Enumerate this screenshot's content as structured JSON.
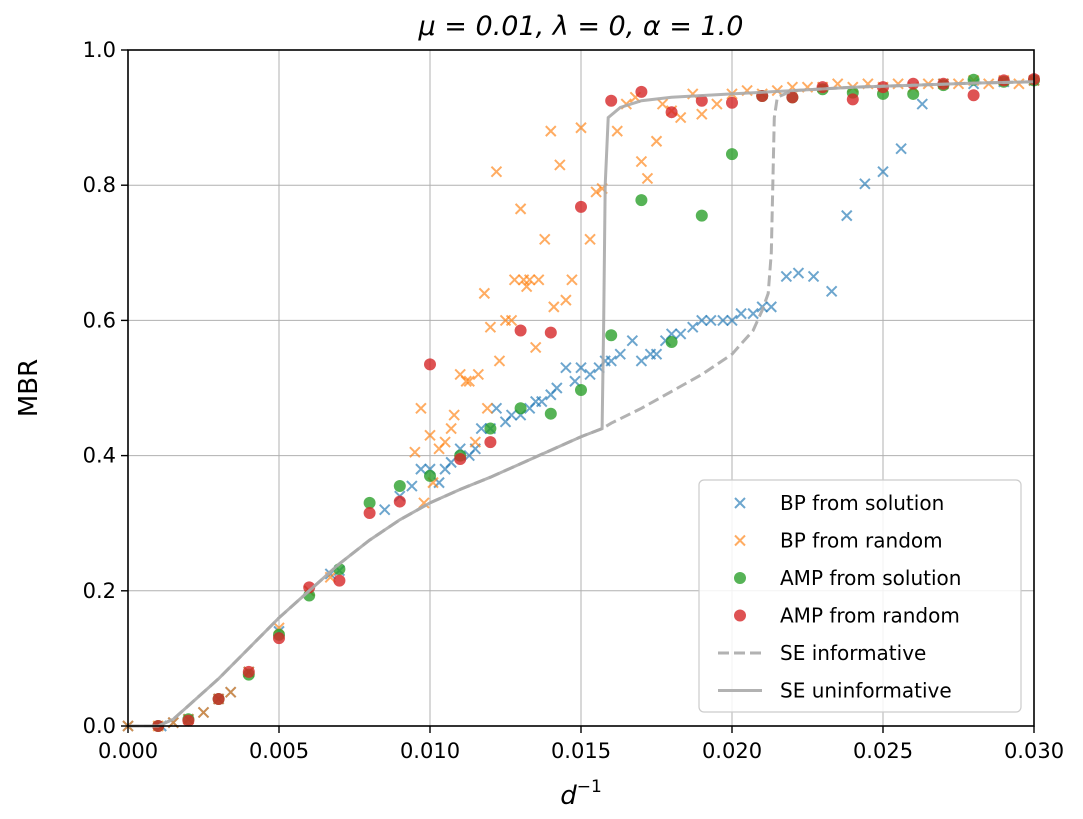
{
  "chart_data": {
    "type": "scatter",
    "title": "μ = 0.01, λ = 0, α = 1.0",
    "xlabel": "d",
    "xlabel_sup": "−1",
    "ylabel": "MBR",
    "xlim": [
      0.0,
      0.03
    ],
    "ylim": [
      0.0,
      1.0
    ],
    "xticks": [
      0.0,
      0.005,
      0.01,
      0.015,
      0.02,
      0.025,
      0.03
    ],
    "xtick_labels": [
      "0.000",
      "0.005",
      "0.010",
      "0.015",
      "0.020",
      "0.025",
      "0.030"
    ],
    "yticks": [
      0.0,
      0.2,
      0.4,
      0.6,
      0.8,
      1.0
    ],
    "ytick_labels": [
      "0.0",
      "0.2",
      "0.4",
      "0.6",
      "0.8",
      "1.0"
    ],
    "grid": true,
    "legend_position": "lower-right",
    "colors": {
      "bp_solution": "#1f77b4",
      "bp_random": "#ff7f0e",
      "amp_solution": "#2ca02c",
      "amp_random": "#d62728",
      "se": "#aaaaaa"
    },
    "series": [
      {
        "name": "BP from solution",
        "marker": "x",
        "color": "#1f77b4",
        "points": [
          [
            0.0,
            0.0
          ],
          [
            0.0011,
            0.0
          ],
          [
            0.0015,
            0.005
          ],
          [
            0.002,
            0.01
          ],
          [
            0.0025,
            0.02
          ],
          [
            0.003,
            0.04
          ],
          [
            0.0034,
            0.05
          ],
          [
            0.004,
            0.08
          ],
          [
            0.005,
            0.14
          ],
          [
            0.006,
            0.2
          ],
          [
            0.0067,
            0.225
          ],
          [
            0.007,
            0.23
          ],
          [
            0.0085,
            0.32
          ],
          [
            0.009,
            0.34
          ],
          [
            0.0094,
            0.355
          ],
          [
            0.0097,
            0.38
          ],
          [
            0.01,
            0.38
          ],
          [
            0.0103,
            0.36
          ],
          [
            0.0105,
            0.38
          ],
          [
            0.0107,
            0.39
          ],
          [
            0.011,
            0.41
          ],
          [
            0.0113,
            0.4
          ],
          [
            0.0115,
            0.41
          ],
          [
            0.0117,
            0.44
          ],
          [
            0.012,
            0.44
          ],
          [
            0.0122,
            0.47
          ],
          [
            0.0125,
            0.45
          ],
          [
            0.0127,
            0.46
          ],
          [
            0.013,
            0.46
          ],
          [
            0.0133,
            0.47
          ],
          [
            0.0135,
            0.48
          ],
          [
            0.0137,
            0.48
          ],
          [
            0.014,
            0.49
          ],
          [
            0.0142,
            0.5
          ],
          [
            0.0145,
            0.53
          ],
          [
            0.0148,
            0.51
          ],
          [
            0.015,
            0.53
          ],
          [
            0.0153,
            0.52
          ],
          [
            0.0156,
            0.53
          ],
          [
            0.0158,
            0.54
          ],
          [
            0.016,
            0.54
          ],
          [
            0.0163,
            0.55
          ],
          [
            0.0167,
            0.57
          ],
          [
            0.017,
            0.54
          ],
          [
            0.0173,
            0.55
          ],
          [
            0.0175,
            0.55
          ],
          [
            0.0178,
            0.57
          ],
          [
            0.018,
            0.58
          ],
          [
            0.0183,
            0.58
          ],
          [
            0.0187,
            0.59
          ],
          [
            0.019,
            0.6
          ],
          [
            0.0193,
            0.6
          ],
          [
            0.0197,
            0.6
          ],
          [
            0.02,
            0.6
          ],
          [
            0.0203,
            0.61
          ],
          [
            0.0207,
            0.61
          ],
          [
            0.021,
            0.62
          ],
          [
            0.0213,
            0.62
          ],
          [
            0.0218,
            0.665
          ],
          [
            0.0222,
            0.67
          ],
          [
            0.0227,
            0.665
          ],
          [
            0.0233,
            0.643
          ],
          [
            0.0238,
            0.755
          ],
          [
            0.0244,
            0.802
          ],
          [
            0.025,
            0.82
          ],
          [
            0.0256,
            0.854
          ],
          [
            0.0263,
            0.92
          ],
          [
            0.027,
            0.95
          ],
          [
            0.028,
            0.95
          ],
          [
            0.029,
            0.953
          ],
          [
            0.03,
            0.955
          ]
        ]
      },
      {
        "name": "BP from random",
        "marker": "x",
        "color": "#ff7f0e",
        "points": [
          [
            0.0,
            0.0
          ],
          [
            0.001,
            0.0
          ],
          [
            0.0015,
            0.005
          ],
          [
            0.002,
            0.01
          ],
          [
            0.0025,
            0.02
          ],
          [
            0.003,
            0.04
          ],
          [
            0.0034,
            0.05
          ],
          [
            0.004,
            0.08
          ],
          [
            0.005,
            0.145
          ],
          [
            0.006,
            0.2
          ],
          [
            0.0067,
            0.22
          ],
          [
            0.0095,
            0.405
          ],
          [
            0.0097,
            0.47
          ],
          [
            0.0098,
            0.33
          ],
          [
            0.01,
            0.43
          ],
          [
            0.0101,
            0.36
          ],
          [
            0.0103,
            0.41
          ],
          [
            0.0105,
            0.42
          ],
          [
            0.0107,
            0.44
          ],
          [
            0.0108,
            0.46
          ],
          [
            0.011,
            0.52
          ],
          [
            0.0112,
            0.51
          ],
          [
            0.0113,
            0.51
          ],
          [
            0.0115,
            0.42
          ],
          [
            0.0116,
            0.52
          ],
          [
            0.0118,
            0.64
          ],
          [
            0.0119,
            0.47
          ],
          [
            0.012,
            0.59
          ],
          [
            0.0122,
            0.82
          ],
          [
            0.0123,
            0.54
          ],
          [
            0.0125,
            0.6
          ],
          [
            0.0127,
            0.6
          ],
          [
            0.0128,
            0.66
          ],
          [
            0.013,
            0.765
          ],
          [
            0.0131,
            0.66
          ],
          [
            0.0132,
            0.65
          ],
          [
            0.0133,
            0.66
          ],
          [
            0.0135,
            0.56
          ],
          [
            0.0136,
            0.66
          ],
          [
            0.0138,
            0.72
          ],
          [
            0.014,
            0.88
          ],
          [
            0.0141,
            0.62
          ],
          [
            0.0143,
            0.83
          ],
          [
            0.0145,
            0.63
          ],
          [
            0.0147,
            0.66
          ],
          [
            0.015,
            0.885
          ],
          [
            0.0153,
            0.72
          ],
          [
            0.0155,
            0.79
          ],
          [
            0.0157,
            0.795
          ],
          [
            0.0162,
            0.88
          ],
          [
            0.0165,
            0.92
          ],
          [
            0.0168,
            0.93
          ],
          [
            0.017,
            0.835
          ],
          [
            0.0172,
            0.81
          ],
          [
            0.0175,
            0.865
          ],
          [
            0.0177,
            0.92
          ],
          [
            0.018,
            0.91
          ],
          [
            0.0183,
            0.9
          ],
          [
            0.0187,
            0.935
          ],
          [
            0.019,
            0.905
          ],
          [
            0.0195,
            0.92
          ],
          [
            0.02,
            0.935
          ],
          [
            0.0205,
            0.94
          ],
          [
            0.021,
            0.935
          ],
          [
            0.0215,
            0.94
          ],
          [
            0.022,
            0.945
          ],
          [
            0.0225,
            0.945
          ],
          [
            0.023,
            0.945
          ],
          [
            0.0235,
            0.95
          ],
          [
            0.024,
            0.945
          ],
          [
            0.0245,
            0.95
          ],
          [
            0.025,
            0.945
          ],
          [
            0.0255,
            0.95
          ],
          [
            0.026,
            0.945
          ],
          [
            0.0265,
            0.95
          ],
          [
            0.027,
            0.95
          ],
          [
            0.0275,
            0.95
          ],
          [
            0.028,
            0.955
          ],
          [
            0.0285,
            0.95
          ],
          [
            0.029,
            0.955
          ],
          [
            0.0295,
            0.95
          ],
          [
            0.03,
            0.955
          ]
        ]
      },
      {
        "name": "AMP from solution",
        "marker": "circle",
        "color": "#2ca02c",
        "points": [
          [
            0.001,
            0.0
          ],
          [
            0.002,
            0.01
          ],
          [
            0.003,
            0.04
          ],
          [
            0.004,
            0.076
          ],
          [
            0.005,
            0.135
          ],
          [
            0.006,
            0.193
          ],
          [
            0.007,
            0.232
          ],
          [
            0.008,
            0.33
          ],
          [
            0.009,
            0.355
          ],
          [
            0.01,
            0.37
          ],
          [
            0.011,
            0.4
          ],
          [
            0.012,
            0.44
          ],
          [
            0.013,
            0.47
          ],
          [
            0.014,
            0.462
          ],
          [
            0.015,
            0.497
          ],
          [
            0.016,
            0.578
          ],
          [
            0.017,
            0.778
          ],
          [
            0.018,
            0.568
          ],
          [
            0.019,
            0.755
          ],
          [
            0.02,
            0.846
          ],
          [
            0.021,
            0.932
          ],
          [
            0.022,
            0.93
          ],
          [
            0.023,
            0.942
          ],
          [
            0.024,
            0.937
          ],
          [
            0.025,
            0.935
          ],
          [
            0.026,
            0.935
          ],
          [
            0.027,
            0.948
          ],
          [
            0.028,
            0.956
          ],
          [
            0.029,
            0.953
          ],
          [
            0.03,
            0.955
          ]
        ]
      },
      {
        "name": "AMP from random",
        "marker": "circle",
        "color": "#d62728",
        "points": [
          [
            0.001,
            0.0
          ],
          [
            0.002,
            0.008
          ],
          [
            0.003,
            0.04
          ],
          [
            0.004,
            0.08
          ],
          [
            0.005,
            0.13
          ],
          [
            0.006,
            0.205
          ],
          [
            0.007,
            0.215
          ],
          [
            0.008,
            0.315
          ],
          [
            0.009,
            0.332
          ],
          [
            0.01,
            0.535
          ],
          [
            0.011,
            0.395
          ],
          [
            0.012,
            0.42
          ],
          [
            0.013,
            0.585
          ],
          [
            0.014,
            0.582
          ],
          [
            0.015,
            0.768
          ],
          [
            0.016,
            0.925
          ],
          [
            0.017,
            0.938
          ],
          [
            0.018,
            0.908
          ],
          [
            0.019,
            0.925
          ],
          [
            0.02,
            0.922
          ],
          [
            0.021,
            0.932
          ],
          [
            0.022,
            0.93
          ],
          [
            0.023,
            0.945
          ],
          [
            0.024,
            0.927
          ],
          [
            0.025,
            0.945
          ],
          [
            0.026,
            0.95
          ],
          [
            0.027,
            0.95
          ],
          [
            0.028,
            0.933
          ],
          [
            0.029,
            0.955
          ],
          [
            0.03,
            0.957
          ]
        ]
      },
      {
        "name": "SE informative",
        "line": "dashed",
        "color": "#aaaaaa",
        "points": [
          [
            0.0,
            0.0
          ],
          [
            0.001,
            0.0
          ],
          [
            0.0015,
            0.01
          ],
          [
            0.002,
            0.03
          ],
          [
            0.003,
            0.07
          ],
          [
            0.004,
            0.115
          ],
          [
            0.005,
            0.16
          ],
          [
            0.006,
            0.2
          ],
          [
            0.007,
            0.24
          ],
          [
            0.008,
            0.275
          ],
          [
            0.009,
            0.305
          ],
          [
            0.01,
            0.33
          ],
          [
            0.011,
            0.35
          ],
          [
            0.012,
            0.368
          ],
          [
            0.013,
            0.388
          ],
          [
            0.014,
            0.408
          ],
          [
            0.015,
            0.428
          ],
          [
            0.0157,
            0.44
          ],
          [
            0.016,
            0.448
          ],
          [
            0.017,
            0.47
          ],
          [
            0.018,
            0.495
          ],
          [
            0.019,
            0.52
          ],
          [
            0.02,
            0.55
          ],
          [
            0.0207,
            0.585
          ],
          [
            0.021,
            0.615
          ],
          [
            0.0212,
            0.64
          ],
          [
            0.0213,
            0.7
          ],
          [
            0.02135,
            0.8
          ],
          [
            0.0214,
            0.9
          ],
          [
            0.0215,
            0.93
          ],
          [
            0.022,
            0.94
          ],
          [
            0.024,
            0.945
          ],
          [
            0.026,
            0.948
          ],
          [
            0.028,
            0.951
          ],
          [
            0.03,
            0.953
          ]
        ]
      },
      {
        "name": "SE uninformative",
        "line": "solid",
        "color": "#aaaaaa",
        "points": [
          [
            0.0,
            0.0
          ],
          [
            0.001,
            0.0
          ],
          [
            0.0015,
            0.01
          ],
          [
            0.002,
            0.03
          ],
          [
            0.003,
            0.07
          ],
          [
            0.004,
            0.115
          ],
          [
            0.005,
            0.16
          ],
          [
            0.006,
            0.2
          ],
          [
            0.007,
            0.24
          ],
          [
            0.008,
            0.275
          ],
          [
            0.009,
            0.305
          ],
          [
            0.01,
            0.33
          ],
          [
            0.011,
            0.35
          ],
          [
            0.012,
            0.368
          ],
          [
            0.013,
            0.388
          ],
          [
            0.014,
            0.408
          ],
          [
            0.015,
            0.428
          ],
          [
            0.0157,
            0.44
          ],
          [
            0.01575,
            0.6
          ],
          [
            0.0158,
            0.8
          ],
          [
            0.0159,
            0.9
          ],
          [
            0.0163,
            0.915
          ],
          [
            0.017,
            0.925
          ],
          [
            0.018,
            0.93
          ],
          [
            0.02,
            0.935
          ],
          [
            0.022,
            0.94
          ],
          [
            0.024,
            0.945
          ],
          [
            0.026,
            0.948
          ],
          [
            0.028,
            0.951
          ],
          [
            0.03,
            0.953
          ]
        ]
      }
    ]
  }
}
